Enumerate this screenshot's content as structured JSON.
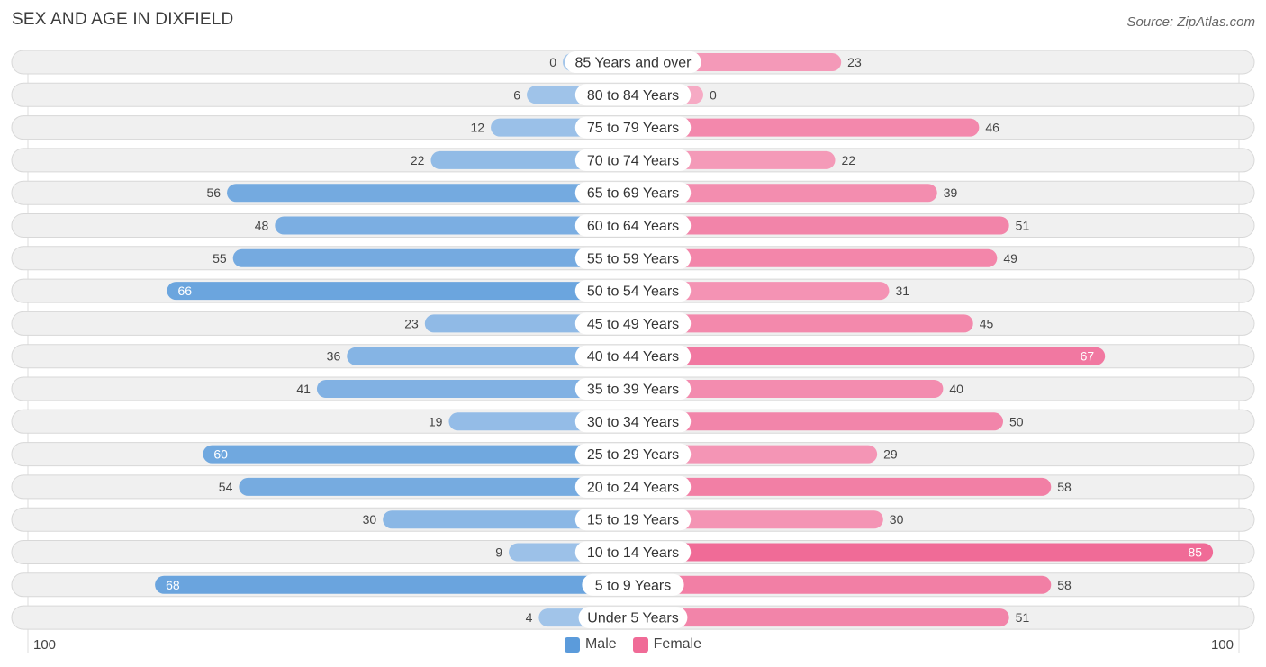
{
  "title": "SEX AND AGE IN DIXFIELD",
  "source": "Source: ZipAtlas.com",
  "axis": {
    "left_label": "100",
    "right_label": "100"
  },
  "legend": {
    "male_label": "Male",
    "female_label": "Female"
  },
  "colors": {
    "male_light": "#a4c6ea",
    "male_dark": "#5b9bdb",
    "female_light": "#f6aac4",
    "female_dark": "#f06b97",
    "row_bg": "#f0f0f0",
    "row_border": "#d8d8d8"
  },
  "chart_data": {
    "type": "bar",
    "orientation": "horizontal-diverging",
    "categories": [
      "85 Years and over",
      "80 to 84 Years",
      "75 to 79 Years",
      "70 to 74 Years",
      "65 to 69 Years",
      "60 to 64 Years",
      "55 to 59 Years",
      "50 to 54 Years",
      "45 to 49 Years",
      "40 to 44 Years",
      "35 to 39 Years",
      "30 to 34 Years",
      "25 to 29 Years",
      "20 to 24 Years",
      "15 to 19 Years",
      "10 to 14 Years",
      "5 to 9 Years",
      "Under 5 Years"
    ],
    "series": [
      {
        "name": "Male",
        "values": [
          0,
          6,
          12,
          22,
          56,
          48,
          55,
          66,
          23,
          36,
          41,
          19,
          60,
          54,
          30,
          9,
          68,
          4
        ]
      },
      {
        "name": "Female",
        "values": [
          23,
          0,
          46,
          22,
          39,
          51,
          49,
          31,
          45,
          67,
          40,
          50,
          29,
          58,
          30,
          85,
          58,
          51
        ]
      }
    ],
    "xlim": [
      -100,
      100
    ],
    "legend_position": "bottom-center"
  }
}
